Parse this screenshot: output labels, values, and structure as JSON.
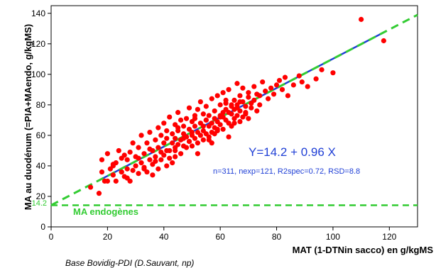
{
  "chart_data": {
    "type": "scatter",
    "xlabel": "MAT (1-DTNin sacco) en g/kgMS",
    "ylabel": "MA au duodénum (=PIA+MAendo, g/kgMS)",
    "xlim": [
      0,
      130
    ],
    "ylim": [
      0,
      145
    ],
    "x_ticks": [
      "0",
      "20",
      "40",
      "60",
      "80",
      "100",
      "120"
    ],
    "y_ticks": [
      "0",
      "20",
      "40",
      "60",
      "80",
      "100",
      "120",
      "140"
    ],
    "grid": false,
    "equation_label": "Y=14.2 + 0.96 X",
    "stats_label": "n=311, nexp=121, R2spec=0.72, RSD=8.8",
    "endogenous_label": "MA endogènes",
    "intercept_label": "14.2",
    "source_label": "Base Bovidig-PDI (D.Sauvant, np)",
    "colors": {
      "points": "#ff0000",
      "regression": "#1f3fd6",
      "dashed": "#33cc33"
    },
    "regression_line": {
      "intercept": 14.2,
      "slope": 0.96,
      "x_range": [
        17,
        118
      ]
    },
    "dashed_line": {
      "intercept": 14.2,
      "slope": 0.96,
      "x_range": [
        0,
        130
      ]
    },
    "endogenous_level": 14.2,
    "series": [
      {
        "x": [
          17,
          18,
          18,
          20,
          20,
          21,
          22,
          22,
          23,
          23,
          24,
          25,
          25,
          26,
          26,
          27,
          27,
          28,
          28,
          29,
          29,
          30,
          30,
          31,
          31,
          32,
          32,
          33,
          33,
          34,
          34,
          35,
          35,
          36,
          36,
          36,
          37,
          37,
          38,
          38,
          38,
          39,
          39,
          39,
          40,
          40,
          40,
          41,
          41,
          41,
          42,
          42,
          42,
          43,
          43,
          43,
          44,
          44,
          44,
          45,
          45,
          45,
          46,
          46,
          46,
          47,
          47,
          47,
          48,
          48,
          48,
          49,
          49,
          49,
          50,
          50,
          50,
          51,
          51,
          51,
          52,
          52,
          52,
          53,
          53,
          53,
          54,
          54,
          54,
          55,
          55,
          55,
          56,
          56,
          56,
          57,
          57,
          57,
          58,
          58,
          58,
          59,
          59,
          59,
          60,
          60,
          60,
          61,
          61,
          61,
          62,
          62,
          62,
          63,
          63,
          63,
          64,
          64,
          64,
          65,
          65,
          65,
          66,
          66,
          66,
          67,
          67,
          67,
          68,
          68,
          68,
          69,
          69,
          70,
          70,
          70,
          71,
          71,
          72,
          72,
          73,
          73,
          74,
          74,
          75,
          76,
          77,
          78,
          79,
          80,
          81,
          82,
          83,
          84,
          86,
          88,
          89,
          91,
          94,
          96,
          100,
          110,
          118,
          14,
          19,
          22,
          25,
          27,
          31,
          33,
          35,
          37,
          41,
          44,
          47,
          50,
          52,
          55,
          57,
          59,
          61,
          63,
          65,
          67,
          69,
          45,
          51,
          56,
          62,
          48,
          54,
          58,
          66,
          44,
          49,
          60,
          64
        ],
        "y": [
          22,
          36,
          44,
          30,
          48,
          38,
          40,
          34,
          42,
          30,
          50,
          36,
          45,
          33,
          47,
          38,
          44,
          30,
          49,
          37,
          55,
          40,
          46,
          35,
          52,
          42,
          60,
          39,
          48,
          36,
          55,
          44,
          62,
          41,
          50,
          34,
          57,
          46,
          38,
          52,
          65,
          44,
          60,
          49,
          47,
          68,
          55,
          40,
          58,
          63,
          50,
          45,
          72,
          55,
          61,
          42,
          58,
          67,
          50,
          54,
          63,
          75,
          48,
          57,
          70,
          53,
          66,
          61,
          59,
          52,
          71,
          64,
          56,
          78,
          60,
          69,
          53,
          66,
          73,
          58,
          62,
          77,
          55,
          68,
          60,
          82,
          63,
          74,
          57,
          70,
          61,
          79,
          66,
          59,
          73,
          68,
          84,
          62,
          71,
          65,
          76,
          69,
          86,
          63,
          73,
          80,
          67,
          64,
          88,
          72,
          77,
          70,
          81,
          68,
          75,
          90,
          74,
          66,
          79,
          71,
          83,
          77,
          94,
          73,
          80,
          69,
          86,
          76,
          72,
          82,
          91,
          75,
          79,
          85,
          71,
          88,
          78,
          81,
          92,
          83,
          76,
          87,
          86,
          80,
          95,
          89,
          84,
          91,
          87,
          93,
          96,
          90,
          98,
          86,
          93,
          99,
          95,
          92,
          97,
          103,
          101,
          136,
          122,
          26,
          30,
          41,
          36,
          32,
          45,
          38,
          51,
          43,
          50,
          46,
          58,
          62,
          48,
          70,
          55,
          64,
          75,
          59,
          68,
          82,
          74,
          65,
          71,
          57,
          83,
          59,
          66,
          61,
          78,
          52,
          56,
          72,
          80
        ]
      }
    ]
  }
}
